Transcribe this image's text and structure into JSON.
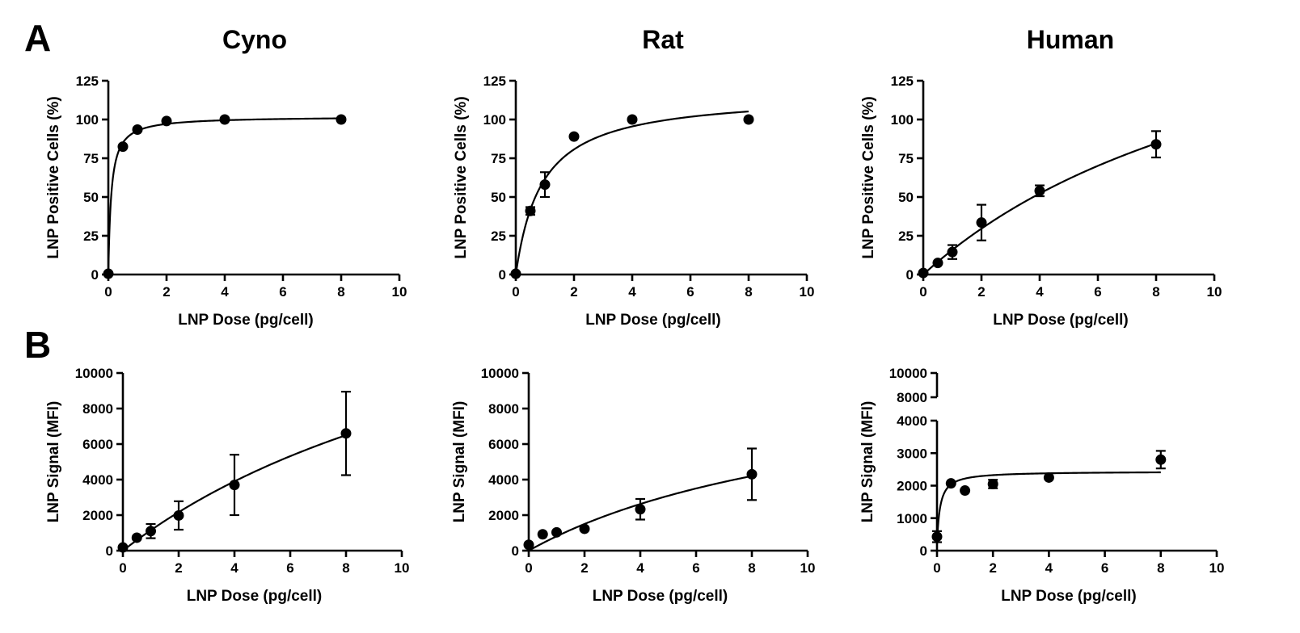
{
  "figure": {
    "panel_labels": [
      "A",
      "B"
    ],
    "column_titles": [
      "Cyno",
      "Rat",
      "Human"
    ]
  },
  "chart_data": [
    {
      "id": "A-cyno",
      "panel": "A",
      "title": "Cyno",
      "type": "scatter",
      "xlabel": "LNP Dose (pg/cell)",
      "ylabel": "LNP Positive Cells (%)",
      "xlim": [
        0,
        10
      ],
      "ylim": [
        0,
        125
      ],
      "xticks": [
        0,
        2,
        4,
        6,
        8,
        10
      ],
      "yticks": [
        0,
        25,
        50,
        75,
        100,
        125
      ],
      "grid": false,
      "points": [
        {
          "x": 0,
          "y": 0.5,
          "err": 0
        },
        {
          "x": 0.5,
          "y": 82.5,
          "err": 0
        },
        {
          "x": 1,
          "y": 93.5,
          "err": 0
        },
        {
          "x": 2,
          "y": 99,
          "err": 0
        },
        {
          "x": 4,
          "y": 100,
          "err": 0
        },
        {
          "x": 8,
          "y": 100,
          "err": 0
        }
      ],
      "fit": {
        "model": "hyperbolic",
        "top": 102,
        "k": 0.1,
        "n": 1,
        "x_max": 8
      }
    },
    {
      "id": "A-rat",
      "panel": "A",
      "title": "Rat",
      "type": "scatter",
      "xlabel": "LNP Dose (pg/cell)",
      "ylabel": "LNP Positive Cells (%)",
      "xlim": [
        0,
        10
      ],
      "ylim": [
        0,
        125
      ],
      "xticks": [
        0,
        2,
        4,
        6,
        8,
        10
      ],
      "yticks": [
        0,
        25,
        50,
        75,
        100,
        125
      ],
      "grid": false,
      "points": [
        {
          "x": 0,
          "y": 0.5,
          "err": 0
        },
        {
          "x": 0.5,
          "y": 41,
          "err": 2.5
        },
        {
          "x": 1,
          "y": 58,
          "err": 8
        },
        {
          "x": 2,
          "y": 89,
          "err": 0
        },
        {
          "x": 4,
          "y": 100,
          "err": 0
        },
        {
          "x": 8,
          "y": 100,
          "err": 0
        }
      ],
      "fit": {
        "model": "hyperbolic",
        "top": 117,
        "k": 0.9,
        "n": 1,
        "x_max": 8
      }
    },
    {
      "id": "A-human",
      "panel": "A",
      "title": "Human",
      "type": "scatter",
      "xlabel": "LNP Dose (pg/cell)",
      "ylabel": "LNP Positive Cells (%)",
      "xlim": [
        0,
        10
      ],
      "ylim": [
        0,
        125
      ],
      "xticks": [
        0,
        2,
        4,
        6,
        8,
        10
      ],
      "yticks": [
        0,
        25,
        50,
        75,
        100,
        125
      ],
      "grid": false,
      "points": [
        {
          "x": 0,
          "y": 1,
          "err": 0
        },
        {
          "x": 0.5,
          "y": 7.5,
          "err": 0
        },
        {
          "x": 1,
          "y": 14.5,
          "err": 4.5
        },
        {
          "x": 2,
          "y": 33.5,
          "err": 11.5
        },
        {
          "x": 4,
          "y": 54,
          "err": 3.5
        },
        {
          "x": 8,
          "y": 84,
          "err": 8.5
        }
      ],
      "fit": {
        "model": "hyperbolic",
        "top": 222,
        "k": 13,
        "n": 1,
        "x_max": 8
      }
    },
    {
      "id": "B-cyno",
      "panel": "B",
      "title": "Cyno",
      "type": "scatter",
      "xlabel": "LNP Dose (pg/cell)",
      "ylabel": "LNP Signal (MFI)",
      "xlim": [
        0,
        10
      ],
      "ylim": [
        0,
        10000
      ],
      "xticks": [
        0,
        2,
        4,
        6,
        8,
        10
      ],
      "yticks": [
        0,
        2000,
        4000,
        6000,
        8000,
        10000
      ],
      "grid": false,
      "points": [
        {
          "x": 0,
          "y": 180,
          "err": 0
        },
        {
          "x": 0.5,
          "y": 730,
          "err": 0
        },
        {
          "x": 1,
          "y": 1100,
          "err": 400
        },
        {
          "x": 2,
          "y": 1980,
          "err": 800
        },
        {
          "x": 4,
          "y": 3700,
          "err": 1700
        },
        {
          "x": 8,
          "y": 6600,
          "err": 2350
        }
      ],
      "fit": {
        "model": "hyperbolic",
        "top": 19500,
        "k": 16,
        "n": 1,
        "x_max": 8
      }
    },
    {
      "id": "B-rat",
      "panel": "B",
      "title": "Rat",
      "type": "scatter",
      "xlabel": "LNP Dose (pg/cell)",
      "ylabel": "LNP Signal (MFI)",
      "xlim": [
        0,
        10
      ],
      "ylim": [
        0,
        10000
      ],
      "xticks": [
        0,
        2,
        4,
        6,
        8,
        10
      ],
      "yticks": [
        0,
        2000,
        4000,
        6000,
        8000,
        10000
      ],
      "grid": false,
      "points": [
        {
          "x": 0,
          "y": 330,
          "err": 0
        },
        {
          "x": 0.5,
          "y": 920,
          "err": 0
        },
        {
          "x": 1,
          "y": 1030,
          "err": 0
        },
        {
          "x": 2,
          "y": 1230,
          "err": 0
        },
        {
          "x": 4,
          "y": 2330,
          "err": 580
        },
        {
          "x": 8,
          "y": 4300,
          "err": 1450
        }
      ],
      "fit": {
        "model": "hyperbolic",
        "top": 10500,
        "k": 12,
        "n": 1,
        "x_max": 8
      }
    },
    {
      "id": "B-human",
      "panel": "B",
      "title": "Human",
      "type": "scatter",
      "xlabel": "LNP Dose (pg/cell)",
      "ylabel": "LNP Signal (MFI)",
      "xlim": [
        0,
        10
      ],
      "ylim": [
        0,
        10000
      ],
      "y_axis_break": {
        "lower": [
          0,
          4000
        ],
        "upper": [
          8000,
          10000
        ]
      },
      "xticks": [
        0,
        2,
        4,
        6,
        8,
        10
      ],
      "yticks": [
        0,
        1000,
        2000,
        3000,
        4000,
        8000,
        10000
      ],
      "grid": false,
      "points": [
        {
          "x": 0,
          "y": 430,
          "err": 170
        },
        {
          "x": 0.5,
          "y": 2070,
          "err": 0
        },
        {
          "x": 1,
          "y": 1850,
          "err": 0
        },
        {
          "x": 2,
          "y": 2050,
          "err": 130
        },
        {
          "x": 4,
          "y": 2250,
          "err": 0
        },
        {
          "x": 8,
          "y": 2800,
          "err": 270
        }
      ],
      "fit": {
        "model": "hyperbolic",
        "top": 2440,
        "k": 0.11,
        "n": 1,
        "x_max": 8,
        "offset": 200
      }
    }
  ]
}
